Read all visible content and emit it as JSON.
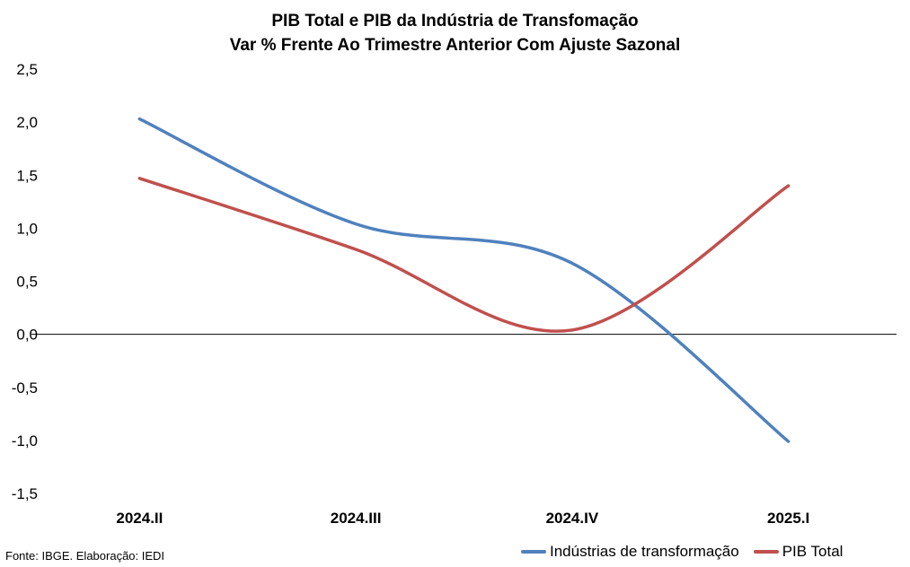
{
  "chart_data": {
    "type": "line",
    "title": "PIB Total e PIB da Indústria de Transfomação",
    "subtitle": "Var % Frente Ao Trimestre Anterior Com Ajuste Sazonal",
    "xlabel": "",
    "ylabel": "",
    "categories": [
      "2024.II",
      "2024.III",
      "2024.IV",
      "2025.I"
    ],
    "ylim": [
      -1.5,
      2.5
    ],
    "y_ticks": [
      2.5,
      2.0,
      1.5,
      1.0,
      0.5,
      0.0,
      -0.5,
      -1.0,
      -1.5
    ],
    "y_tick_labels": [
      "2,5",
      "2,0",
      "1,5",
      "1,0",
      "0,5",
      "0,0",
      "-0,5",
      "-1,0",
      "-1,5"
    ],
    "grid": false,
    "smooth": true,
    "legend_position": "bottom-right",
    "series": [
      {
        "name": "Indústrias de transformação",
        "color": "#4f81bd",
        "values": [
          2.03,
          1.04,
          0.67,
          -1.01
        ]
      },
      {
        "name": "PIB Total",
        "color": "#c0504d",
        "values": [
          1.47,
          0.8,
          0.04,
          1.4
        ]
      }
    ]
  },
  "footer": {
    "source": "Fonte: IBGE. Elaboração: IEDI"
  }
}
